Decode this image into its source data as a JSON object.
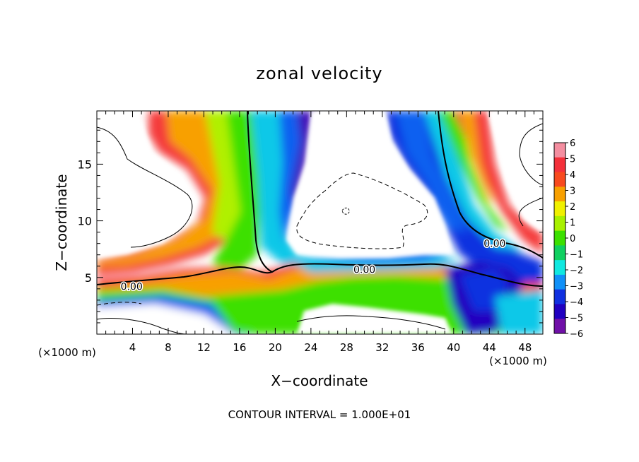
{
  "chart_data": {
    "type": "heatmap",
    "title": "zonal velocity",
    "xlabel": "X−coordinate",
    "ylabel": "Z−coordinate",
    "x_unit_label": "(×1000 m)",
    "x_unit_label_right": "(×1000 m)",
    "footer": "CONTOUR INTERVAL = 1.000E+01",
    "xlim": [
      0,
      50
    ],
    "ylim": [
      0,
      19.7
    ],
    "x_ticks": [
      "4",
      "8",
      "12",
      "16",
      "20",
      "24",
      "28",
      "32",
      "36",
      "40",
      "44",
      "48"
    ],
    "y_ticks": [
      "5",
      "10",
      "15"
    ],
    "colorbar_ticks": [
      "6",
      "5",
      "4",
      "3",
      "2",
      "1",
      "0",
      "−1",
      "−2",
      "−3",
      "−4",
      "−5",
      "−6"
    ],
    "colorbar_range": [
      -6,
      6
    ],
    "colorbar_colors": [
      "#f48ea0",
      "#f4303a",
      "#f84a1e",
      "#f8a000",
      "#f0f000",
      "#a8f000",
      "#3ce000",
      "#10d060",
      "#10e8e0",
      "#1090f8",
      "#1030e0",
      "#2000c0",
      "#7010a8"
    ],
    "contour_labels": [
      {
        "text": "0.00",
        "x": 3.9,
        "y": 4.2
      },
      {
        "text": "0.00",
        "x": 30.0,
        "y": 5.7
      },
      {
        "text": "0.00",
        "x": 44.6,
        "y": 8.0
      }
    ],
    "grid": false,
    "legend": "colorbar right"
  }
}
